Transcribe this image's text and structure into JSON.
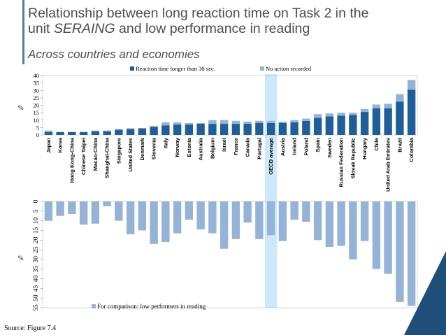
{
  "title": {
    "line1": "Relationship between long reaction time on Task 2 in the",
    "line2_pre": "unit ",
    "line2_unit": "SERAING",
    "line2_post": " and low performance in reading",
    "subtitle": "Across countries and economies"
  },
  "source": "Source: Figure 7.4",
  "colors": {
    "dark": "#1f5f99",
    "light": "#95b3d7",
    "highlight": "#cce8fa",
    "corner": "#1f4e79"
  },
  "chart_data": [
    {
      "type": "bar",
      "stacked": true,
      "ylabel": "%",
      "ylim": [
        0,
        40
      ],
      "yticks": [
        0,
        5,
        10,
        15,
        20,
        25,
        30,
        35,
        40
      ],
      "highlight_category": "OECD average",
      "legend_position": "top",
      "categories": [
        "Japan",
        "Korea",
        "Hong Kong-China",
        "Chinese Taipei",
        "Macao-China",
        "Shanghai-China",
        "Singapore",
        "United States",
        "Denmark",
        "Slovenia",
        "Italy",
        "Norway",
        "Estonia",
        "Australia",
        "Belgium",
        "Israel",
        "France",
        "Canada",
        "Portugal",
        "OECD average",
        "Austria",
        "Ireland",
        "Poland",
        "Spain",
        "Sweden",
        "Russian Federation",
        "Slovak Republic",
        "Hungary",
        "Chile",
        "United Arab Emirates",
        "Brazil",
        "Colombia"
      ],
      "series": [
        {
          "name": "Reaction time longer than 30 sec.",
          "values": [
            2,
            2,
            2,
            2,
            2.5,
            2.5,
            3.5,
            4,
            4.5,
            5.5,
            6.5,
            7,
            7,
            7.5,
            7.5,
            7.5,
            7.5,
            7.5,
            8,
            8,
            8,
            8.5,
            9.5,
            11.5,
            12.5,
            13,
            13.5,
            15.5,
            18,
            18,
            22.5,
            30.5
          ]
        },
        {
          "name": "No action recorded",
          "values": [
            1,
            0,
            0,
            0,
            0.5,
            0.5,
            0.5,
            0.5,
            0,
            0.5,
            2,
            1.5,
            1,
            0.5,
            2.5,
            2.5,
            2,
            1.5,
            1.5,
            1.5,
            1,
            1.5,
            1.5,
            2.5,
            2,
            2,
            1.5,
            2,
            2.5,
            3,
            5,
            6.5
          ]
        }
      ]
    },
    {
      "type": "bar",
      "ylabel": "%",
      "ylim": [
        0,
        55
      ],
      "yticks": [
        0,
        5,
        10,
        15,
        20,
        25,
        30,
        35,
        40,
        45,
        50,
        55
      ],
      "inverted": true,
      "legend_position": "bottom",
      "series": [
        {
          "name": "For comparison: low performers in reading",
          "values": [
            10,
            7.5,
            6.5,
            12,
            11.5,
            2.5,
            10,
            17,
            15,
            22,
            21,
            16.5,
            9.5,
            14.5,
            16.5,
            24.5,
            19.5,
            11,
            19.5,
            17.5,
            20.5,
            9.5,
            10.5,
            20,
            23.5,
            23,
            30,
            20.5,
            35,
            37.5,
            52,
            54
          ]
        }
      ]
    }
  ]
}
